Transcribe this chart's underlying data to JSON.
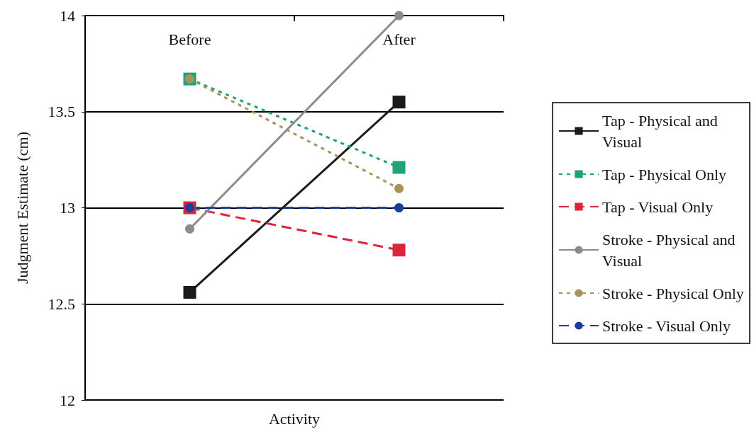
{
  "chart_data": {
    "type": "line",
    "xlabel": "Activity",
    "ylabel": "Judgment Estimate (cm)",
    "categories": [
      "Before",
      "After"
    ],
    "series": [
      {
        "name": "Tap - Physical and Visual",
        "color": "#1a1a1a",
        "values": [
          12.56,
          13.55
        ],
        "marker": "square",
        "line_style": "solid"
      },
      {
        "name": "Tap - Physical Only",
        "color": "#1fa27a",
        "values": [
          13.67,
          13.21
        ],
        "marker": "square",
        "line_style": "dotted"
      },
      {
        "name": "Tap - Visual Only",
        "color": "#d9263c",
        "values": [
          13.0,
          12.78
        ],
        "marker": "square",
        "line_style": "dashed"
      },
      {
        "name": "Stroke - Physical and Visual",
        "color": "#8c8c8c",
        "values": [
          12.89,
          14.0
        ],
        "marker": "circle",
        "line_style": "solid"
      },
      {
        "name": "Stroke - Physical Only",
        "color": "#a8935a",
        "values": [
          13.67,
          13.1
        ],
        "marker": "circle",
        "line_style": "dotted"
      },
      {
        "name": "Stroke - Visual Only",
        "color": "#1c3f9e",
        "values": [
          13.0,
          13.0
        ],
        "marker": "circle",
        "line_style": "dashed"
      }
    ],
    "ylim": [
      12,
      14
    ],
    "yticks": [
      12,
      12.5,
      13,
      13.5,
      14
    ],
    "grid": "y",
    "legend": "right"
  }
}
